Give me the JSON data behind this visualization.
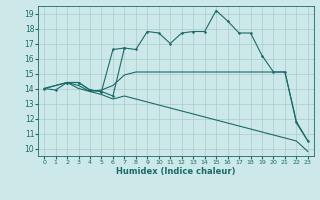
{
  "bg_color": "#cde8e8",
  "grid_color": "#aacccc",
  "line_color": "#1a6b6b",
  "xlabel": "Humidex (Indice chaleur)",
  "ylim": [
    9.5,
    19.5
  ],
  "xlim": [
    -0.5,
    23.5
  ],
  "yticks": [
    10,
    11,
    12,
    13,
    14,
    15,
    16,
    17,
    18,
    19
  ],
  "xticks": [
    0,
    1,
    2,
    3,
    4,
    5,
    6,
    7,
    8,
    9,
    10,
    11,
    12,
    13,
    14,
    15,
    16,
    17,
    18,
    19,
    20,
    21,
    22,
    23
  ],
  "series": [
    {
      "x": [
        0,
        1,
        2,
        3,
        4,
        5,
        6,
        7,
        8,
        9,
        10,
        11,
        12,
        13,
        14,
        15,
        16,
        17,
        18,
        19,
        20,
        21,
        22,
        23
      ],
      "y": [
        14.0,
        13.9,
        14.4,
        14.4,
        13.9,
        13.8,
        13.5,
        16.7,
        16.6,
        17.8,
        17.7,
        17.0,
        17.7,
        17.8,
        17.8,
        19.2,
        18.5,
        17.7,
        17.7,
        16.2,
        15.1,
        15.1,
        11.8,
        10.5
      ],
      "marker": ".",
      "linestyle": "-",
      "linewidth": 0.8,
      "markersize": 2.5
    },
    {
      "x": [
        0,
        2,
        3,
        4,
        5,
        6,
        7,
        8,
        9,
        10,
        11,
        12,
        13,
        14,
        15,
        16,
        17,
        18,
        19,
        20,
        21,
        22,
        23
      ],
      "y": [
        14.0,
        14.4,
        14.2,
        13.8,
        13.9,
        14.2,
        14.9,
        15.1,
        15.1,
        15.1,
        15.1,
        15.1,
        15.1,
        15.1,
        15.1,
        15.1,
        15.1,
        15.1,
        15.1,
        15.1,
        15.1,
        11.7,
        10.5
      ],
      "marker": null,
      "linestyle": "-",
      "linewidth": 0.8,
      "markersize": 0
    },
    {
      "x": [
        0,
        2,
        3,
        4,
        5,
        6,
        7,
        8,
        9,
        10,
        11,
        12,
        13,
        14,
        15,
        16,
        17,
        18,
        19,
        20,
        21,
        22,
        23
      ],
      "y": [
        14.0,
        14.4,
        14.0,
        13.8,
        13.6,
        13.3,
        13.5,
        13.3,
        13.1,
        12.9,
        12.7,
        12.5,
        12.3,
        12.1,
        11.9,
        11.7,
        11.5,
        11.3,
        11.1,
        10.9,
        10.7,
        10.5,
        9.8
      ],
      "marker": null,
      "linestyle": "-",
      "linewidth": 0.8,
      "markersize": 0
    },
    {
      "x": [
        2,
        3,
        4,
        5,
        6,
        7
      ],
      "y": [
        14.4,
        14.4,
        13.9,
        13.8,
        16.6,
        16.7
      ],
      "marker": ".",
      "linestyle": "-",
      "linewidth": 0.8,
      "markersize": 2.5
    }
  ]
}
